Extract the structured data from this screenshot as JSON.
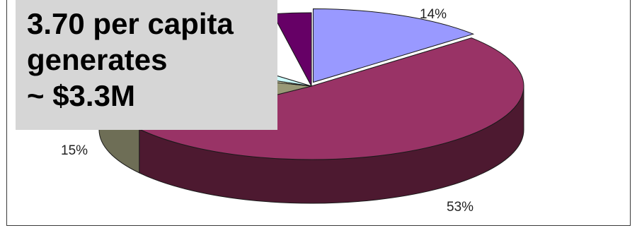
{
  "callout": {
    "lines": [
      "3.70 per capita",
      "generates",
      "~ $3.3M"
    ]
  },
  "chart_data": {
    "type": "pie",
    "style": "3d-exploded",
    "slices": [
      {
        "value": 14,
        "label": "14%",
        "color": "#9999ff",
        "side_color": "#6f6fb8"
      },
      {
        "value": 53,
        "label": "53%",
        "color": "#993366",
        "side_color": "#4d1930"
      },
      {
        "value": 15,
        "label": "15%",
        "color": "#999977",
        "side_color": "#6e6e56"
      },
      {
        "value": 2,
        "label": "",
        "color": "#ffffcc",
        "side_color": "#c8c89a"
      },
      {
        "value": 5,
        "label": "",
        "color": "#ccffff",
        "side_color": "#99cccc"
      },
      {
        "value": 11,
        "label": "",
        "color": "#ffffff",
        "side_color": "#cccccc"
      },
      {
        "value": 3,
        "label": "%",
        "color": "#660066",
        "side_color": "#3d003d"
      }
    ]
  }
}
